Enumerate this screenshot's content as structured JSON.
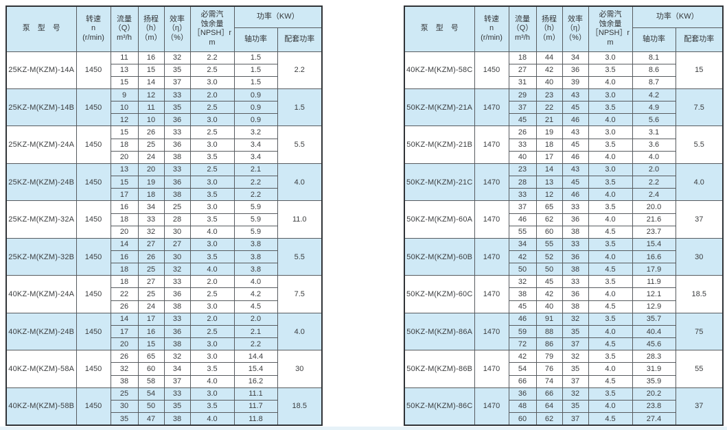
{
  "colors": {
    "header_bg": "#cfe9f5",
    "highlight_row_bg": "#cfe9f6",
    "grid_line": "#565a5e",
    "outer_border": "#2f3236",
    "page_bg": "#ffffff",
    "bottom_strip": "#e6f2f8"
  },
  "header": {
    "model": "泵　型　号",
    "speed": "转速\nn\n(r/min)",
    "flow": "流量\n（Q）\nm³/h",
    "head": "扬程\n（h）\n（m）",
    "efficiency": "效率\n（η）\n（%）",
    "npsh": "必需汽\n蚀余量\n［NPSH］r\nm",
    "power": "功率（KW）",
    "shaft_power": "轴功率",
    "config_power": "配套功率"
  },
  "tables": [
    {
      "side": "left",
      "groups": [
        {
          "model": "25KZ-M(KZM)-14A",
          "speed": "1450",
          "highlight": false,
          "config": "2.2",
          "rows": [
            [
              "11",
              "16",
              "32",
              "2.2",
              "1.5"
            ],
            [
              "13",
              "15",
              "35",
              "2.5",
              "1.5"
            ],
            [
              "15",
              "14",
              "37",
              "3.0",
              "1.5"
            ]
          ]
        },
        {
          "model": "25KZ-M(KZM)-14B",
          "speed": "1450",
          "highlight": true,
          "config": "1.5",
          "rows": [
            [
              "9",
              "12",
              "33",
              "2.0",
              "0.9"
            ],
            [
              "10",
              "11",
              "35",
              "2.5",
              "0.9"
            ],
            [
              "12",
              "10",
              "36",
              "3.0",
              "0.9"
            ]
          ]
        },
        {
          "model": "25KZ-M(KZM)-24A",
          "speed": "1450",
          "highlight": false,
          "config": "5.5",
          "rows": [
            [
              "15",
              "26",
              "33",
              "2.5",
              "3.2"
            ],
            [
              "18",
              "25",
              "36",
              "3.0",
              "3.4"
            ],
            [
              "20",
              "24",
              "38",
              "3.5",
              "3.4"
            ]
          ]
        },
        {
          "model": "25KZ-M(KZM)-24B",
          "speed": "1450",
          "highlight": true,
          "config": "4.0",
          "rows": [
            [
              "13",
              "20",
              "33",
              "2.5",
              "2.1"
            ],
            [
              "15",
              "19",
              "36",
              "3.0",
              "2.2"
            ],
            [
              "17",
              "18",
              "38",
              "3.5",
              "2.2"
            ]
          ]
        },
        {
          "model": "25KZ-M(KZM)-32A",
          "speed": "1450",
          "highlight": false,
          "config": "11.0",
          "rows": [
            [
              "16",
              "34",
              "25",
              "3.0",
              "5.9"
            ],
            [
              "18",
              "33",
              "28",
              "3.5",
              "5.9"
            ],
            [
              "20",
              "32",
              "30",
              "4.0",
              "5.9"
            ]
          ]
        },
        {
          "model": "25KZ-M(KZM)-32B",
          "speed": "1450",
          "highlight": true,
          "config": "5.5",
          "rows": [
            [
              "14",
              "27",
              "27",
              "3.0",
              "3.8"
            ],
            [
              "16",
              "26",
              "30",
              "3.5",
              "3.8"
            ],
            [
              "18",
              "25",
              "32",
              "4.0",
              "3.8"
            ]
          ]
        },
        {
          "model": "40KZ-M(KZM)-24A",
          "speed": "1450",
          "highlight": false,
          "config": "7.5",
          "rows": [
            [
              "18",
              "27",
              "33",
              "2.0",
              "4.0"
            ],
            [
              "22",
              "25",
              "36",
              "2.5",
              "4.2"
            ],
            [
              "26",
              "24",
              "38",
              "3.0",
              "4.5"
            ]
          ]
        },
        {
          "model": "40KZ-M(KZM)-24B",
          "speed": "1450",
          "highlight": true,
          "config": "4.0",
          "rows": [
            [
              "14",
              "17",
              "33",
              "2.0",
              "2.0"
            ],
            [
              "17",
              "16",
              "36",
              "2.5",
              "2.1"
            ],
            [
              "20",
              "15",
              "38",
              "3.0",
              "2.2"
            ]
          ]
        },
        {
          "model": "40KZ-M(KZM)-58A",
          "speed": "1450",
          "highlight": false,
          "config": "30",
          "rows": [
            [
              "26",
              "65",
              "32",
              "3.0",
              "14.4"
            ],
            [
              "32",
              "60",
              "34",
              "3.5",
              "15.4"
            ],
            [
              "38",
              "58",
              "37",
              "4.0",
              "16.2"
            ]
          ]
        },
        {
          "model": "40KZ-M(KZM)-58B",
          "speed": "1450",
          "highlight": true,
          "config": "18.5",
          "rows": [
            [
              "25",
              "54",
              "33",
              "3.0",
              "11.1"
            ],
            [
              "30",
              "50",
              "35",
              "3.5",
              "11.7"
            ],
            [
              "35",
              "47",
              "38",
              "4.0",
              "11.8"
            ]
          ]
        }
      ]
    },
    {
      "side": "right",
      "groups": [
        {
          "model": "40KZ-M(KZM)-58C",
          "speed": "1450",
          "highlight": false,
          "config": "15",
          "rows": [
            [
              "18",
              "44",
              "34",
              "3.0",
              "8.1"
            ],
            [
              "27",
              "42",
              "36",
              "3.5",
              "8.6"
            ],
            [
              "31",
              "40",
              "39",
              "4.0",
              "8.7"
            ]
          ]
        },
        {
          "model": "50KZ-M(KZM)-21A",
          "speed": "1470",
          "highlight": true,
          "config": "7.5",
          "rows": [
            [
              "29",
              "23",
              "43",
              "3.0",
              "4.2"
            ],
            [
              "37",
              "22",
              "45",
              "3.5",
              "4.9"
            ],
            [
              "45",
              "21",
              "46",
              "4.0",
              "5.6"
            ]
          ]
        },
        {
          "model": "50KZ-M(KZM)-21B",
          "speed": "1470",
          "highlight": false,
          "config": "5.5",
          "rows": [
            [
              "26",
              "19",
              "43",
              "3.0",
              "3.1"
            ],
            [
              "33",
              "18",
              "45",
              "3.5",
              "3.6"
            ],
            [
              "40",
              "17",
              "46",
              "4.0",
              "4.0"
            ]
          ]
        },
        {
          "model": "50KZ-M(KZM)-21C",
          "speed": "1470",
          "highlight": true,
          "config": "4.0",
          "rows": [
            [
              "23",
              "14",
              "43",
              "3.0",
              "2.0"
            ],
            [
              "28",
              "13",
              "45",
              "3.5",
              "2.2"
            ],
            [
              "33",
              "12",
              "46",
              "4.0",
              "2.4"
            ]
          ]
        },
        {
          "model": "50KZ-M(KZM)-60A",
          "speed": "1470",
          "highlight": false,
          "config": "37",
          "rows": [
            [
              "37",
              "65",
              "33",
              "3.5",
              "20.0"
            ],
            [
              "46",
              "62",
              "36",
              "4.0",
              "21.6"
            ],
            [
              "55",
              "60",
              "38",
              "4.5",
              "23.7"
            ]
          ]
        },
        {
          "model": "50KZ-M(KZM)-60B",
          "speed": "1470",
          "highlight": true,
          "config": "30",
          "rows": [
            [
              "34",
              "55",
              "33",
              "3.5",
              "15.4"
            ],
            [
              "42",
              "52",
              "36",
              "4.0",
              "16.6"
            ],
            [
              "50",
              "50",
              "38",
              "4.5",
              "17.9"
            ]
          ]
        },
        {
          "model": "50KZ-M(KZM)-60C",
          "speed": "1470",
          "highlight": false,
          "config": "18.5",
          "rows": [
            [
              "32",
              "45",
              "33",
              "3.5",
              "11.9"
            ],
            [
              "38",
              "42",
              "36",
              "4.0",
              "12.1"
            ],
            [
              "45",
              "40",
              "38",
              "4.5",
              "12.9"
            ]
          ]
        },
        {
          "model": "50KZ-M(KZM)-86A",
          "speed": "1470",
          "highlight": true,
          "config": "75",
          "rows": [
            [
              "46",
              "91",
              "32",
              "3.5",
              "35.7"
            ],
            [
              "59",
              "88",
              "35",
              "4.0",
              "40.4"
            ],
            [
              "72",
              "86",
              "37",
              "4.5",
              "45.6"
            ]
          ]
        },
        {
          "model": "50KZ-M(KZM)-86B",
          "speed": "1470",
          "highlight": false,
          "config": "55",
          "rows": [
            [
              "42",
              "79",
              "32",
              "3.5",
              "28.3"
            ],
            [
              "54",
              "76",
              "35",
              "4.0",
              "31.9"
            ],
            [
              "66",
              "74",
              "37",
              "4.5",
              "35.9"
            ]
          ]
        },
        {
          "model": "50KZ-M(KZM)-86C",
          "speed": "1470",
          "highlight": true,
          "config": "37",
          "rows": [
            [
              "36",
              "66",
              "32",
              "3.5",
              "20.2"
            ],
            [
              "48",
              "64",
              "35",
              "4.0",
              "23.8"
            ],
            [
              "60",
              "62",
              "37",
              "4.5",
              "27.4"
            ]
          ]
        }
      ]
    }
  ]
}
